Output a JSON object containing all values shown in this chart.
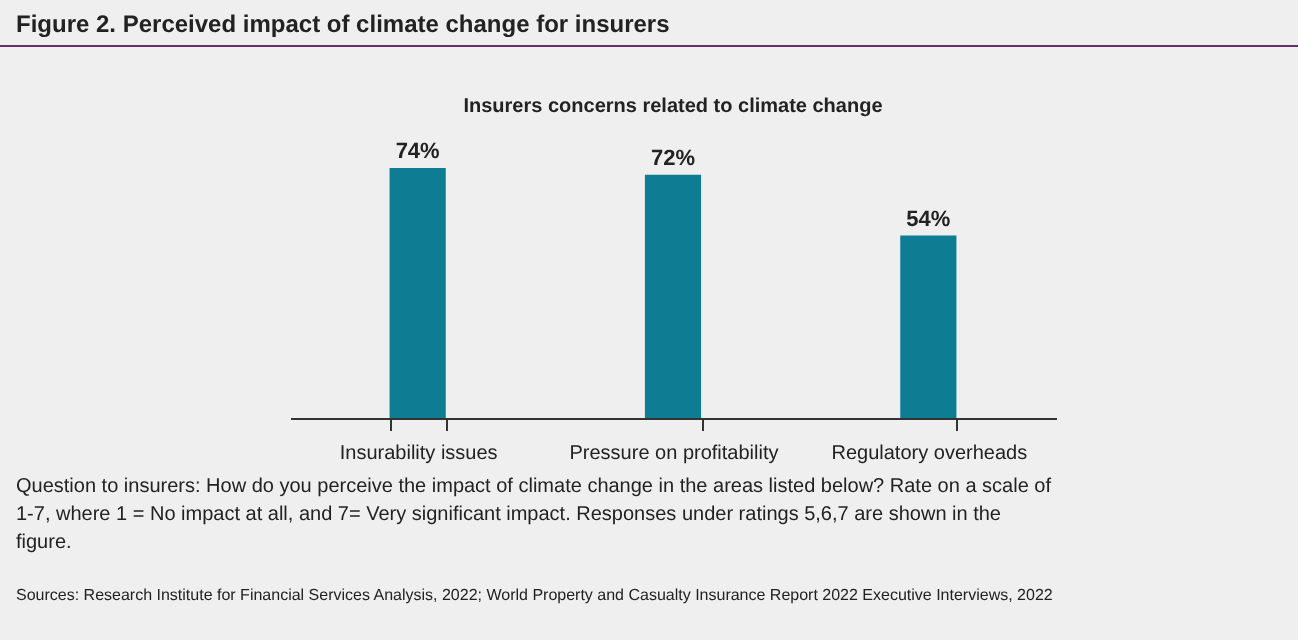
{
  "chart_data": {
    "type": "bar",
    "title": "Figure 2. Perceived impact of climate change for insurers",
    "subtitle": "Insurers concerns related to climate change",
    "categories": [
      "Insurability issues",
      "Pressure on profitability",
      "Regulatory overheads"
    ],
    "values": [
      74,
      72,
      54
    ],
    "value_labels": [
      "74%",
      "72%",
      "54%"
    ],
    "color": "#0e7c93",
    "annotations": [
      "Question to insurers: How do you perceive the impact of climate change in the areas listed below? Rate on a scale of 1-7, where 1 = No impact at all, and 7= Very significant impact. Responses under ratings 5,6,7 are shown in the figure.",
      "Sources: Research Institute for Financial Services Analysis, 2022; World Property and Casualty Insurance Report 2022 Executive Interviews, 2022"
    ]
  }
}
